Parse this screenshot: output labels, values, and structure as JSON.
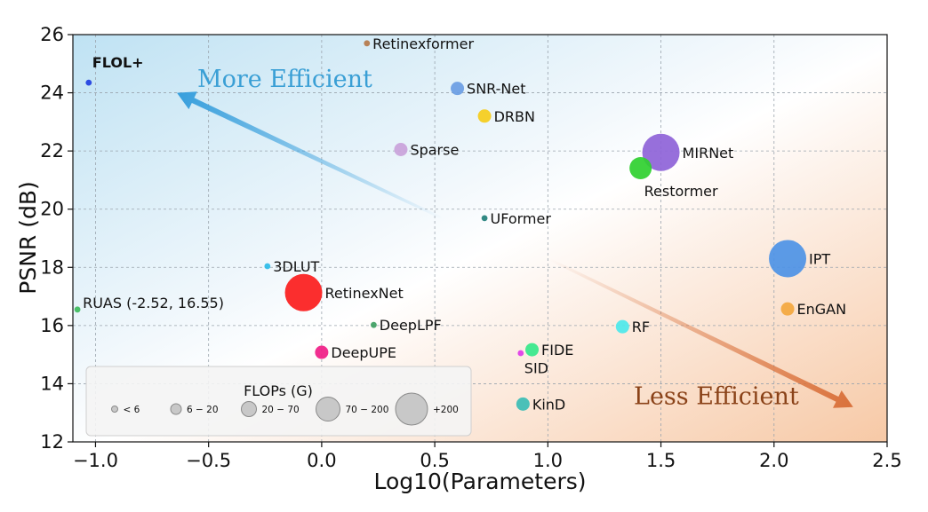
{
  "chart_data": {
    "type": "scatter",
    "title": "",
    "xlabel": "Log10(Parameters)",
    "ylabel": "PSNR (dB)",
    "xlim": [
      -1.1,
      2.5
    ],
    "ylim": [
      12,
      26
    ],
    "grid": true,
    "xticks": [
      -1.0,
      -0.5,
      0.0,
      0.5,
      1.0,
      1.5,
      2.0,
      2.5
    ],
    "xtick_labels": [
      "−1.0",
      "−0.5",
      "0.0",
      "0.5",
      "1.0",
      "1.5",
      "2.0",
      "2.5"
    ],
    "yticks": [
      12,
      14,
      16,
      18,
      20,
      22,
      24,
      26
    ],
    "ytick_labels": [
      "12",
      "14",
      "16",
      "18",
      "20",
      "22",
      "24",
      "26"
    ],
    "points": [
      {
        "label": "FLOL+",
        "x": -1.03,
        "y": 24.35,
        "size_class": "<6",
        "color": "#1f3fe0",
        "label_pos": "above",
        "bold": true,
        "label_color": "#2d3a4a"
      },
      {
        "label": "Retinexformer",
        "x": 0.2,
        "y": 25.7,
        "size_class": "<6",
        "color": "#b5784a",
        "label_pos": "right"
      },
      {
        "label": "SNR-Net",
        "x": 0.6,
        "y": 24.15,
        "size_class": "6-20",
        "color": "#6a9de3",
        "label_pos": "right"
      },
      {
        "label": "DRBN",
        "x": 0.72,
        "y": 23.2,
        "size_class": "6-20",
        "color": "#f5cc1a",
        "label_pos": "right"
      },
      {
        "label": "Sparse",
        "x": 0.35,
        "y": 22.05,
        "size_class": "6-20",
        "color": "#c9a2da",
        "label_pos": "right"
      },
      {
        "label": "MIRNet",
        "x": 1.5,
        "y": 21.95,
        "size_class": "+200",
        "color": "#8e63d8",
        "label_pos": "right"
      },
      {
        "label": "Restormer",
        "x": 1.41,
        "y": 21.41,
        "size_class": "20-70",
        "color": "#2fd02f",
        "label_pos": "below-right"
      },
      {
        "label": "UFormer",
        "x": 0.72,
        "y": 19.69,
        "size_class": "<6",
        "color": "#1f7f7a",
        "label_pos": "right"
      },
      {
        "label": "3DLUT",
        "x": -0.24,
        "y": 18.04,
        "size_class": "<6",
        "color": "#2bbbe8",
        "label_pos": "right"
      },
      {
        "label": "IPT",
        "x": 2.06,
        "y": 18.3,
        "size_class": "+200",
        "color": "#4d92e6",
        "label_pos": "right"
      },
      {
        "label": "RetinexNet",
        "x": -0.08,
        "y": 17.13,
        "size_class": "+200",
        "color": "#fb1c1c",
        "label_pos": "right"
      },
      {
        "label": "RUAS (-2.52, 16.55)",
        "x": -1.08,
        "y": 16.55,
        "size_class": "<6",
        "color": "#3dbb5c",
        "label_pos": "upper-right"
      },
      {
        "label": "DeepLPF",
        "x": 0.23,
        "y": 16.02,
        "size_class": "<6",
        "color": "#3e9e62",
        "label_pos": "right"
      },
      {
        "label": "EnGAN",
        "x": 2.06,
        "y": 16.57,
        "size_class": "6-20",
        "color": "#f3a73e",
        "label_pos": "right",
        "label_color": "#666666"
      },
      {
        "label": "RF",
        "x": 1.33,
        "y": 15.96,
        "size_class": "6-20",
        "color": "#4de8ea",
        "label_pos": "right"
      },
      {
        "label": "DeepUPE",
        "x": 0.0,
        "y": 15.08,
        "size_class": "6-20",
        "color": "#f01c85",
        "label_pos": "right"
      },
      {
        "label": "FIDE",
        "x": 0.93,
        "y": 15.17,
        "size_class": "6-20",
        "color": "#35e88a",
        "label_pos": "right"
      },
      {
        "label": "SID",
        "x": 0.88,
        "y": 15.05,
        "size_class": "<6",
        "color": "#e03ae8",
        "label_pos": "below-right"
      },
      {
        "label": "KinD",
        "x": 0.89,
        "y": 13.3,
        "size_class": "6-20",
        "color": "#3bbdb5",
        "label_pos": "right"
      }
    ],
    "annotations": [
      {
        "text": "More Efficient",
        "color": "#3a9fd5",
        "x": -0.55,
        "y": 24.2
      },
      {
        "text": "Less Efficient",
        "color": "#8a4218",
        "x": 1.38,
        "y": 13.3
      }
    ],
    "arrows": [
      {
        "name": "more-efficient-arrow",
        "from": [
          0.53,
          19.7
        ],
        "to": [
          -0.64,
          24.0
        ],
        "color": "#3aa0dd"
      },
      {
        "name": "less-efficient-arrow",
        "from": [
          1.0,
          18.3
        ],
        "to": [
          2.35,
          13.2
        ],
        "color": "#d9703a"
      }
    ],
    "legend": {
      "title": "FLOPs (G)",
      "location": "lower-left",
      "entries": [
        {
          "label": "< 6",
          "size_class": "<6"
        },
        {
          "label": "6 − 20",
          "size_class": "6-20"
        },
        {
          "label": "20 − 70",
          "size_class": "20-70"
        },
        {
          "label": "70 − 200",
          "size_class": "70-200"
        },
        {
          "label": "+200",
          "size_class": "+200"
        }
      ]
    }
  }
}
